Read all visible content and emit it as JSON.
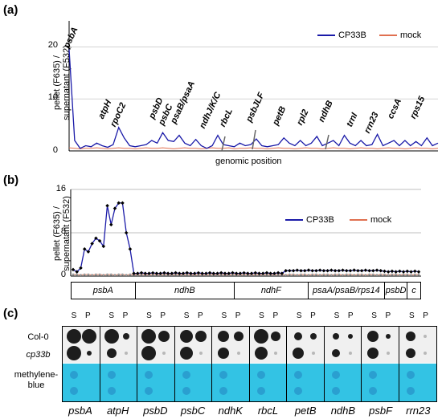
{
  "panel_a": {
    "label": "(a)",
    "ylabel_line1": "pellet (F635) /",
    "ylabel_line2": "supernatant (F532)",
    "yticks": [
      "20",
      "10",
      "0"
    ],
    "xlabel": "genomic position",
    "legend": [
      "CP33B",
      "mock"
    ],
    "genes": [
      "psbA",
      "atpH",
      "rpoC2",
      "psbD",
      "psbC",
      "psaB/psaA",
      "ndhJ/K/C",
      "rbcL",
      "psbJLF",
      "petB",
      "rpl2",
      "ndhB",
      "trnI",
      "rrn23",
      "ccsA",
      "rps15"
    ]
  },
  "panel_b": {
    "label": "(b)",
    "ylabel_line1": "pellet (F635) /",
    "ylabel_line2": "supernatant (F532)",
    "yticks": [
      "16",
      "8",
      "0"
    ],
    "legend": [
      "CP33B",
      "mock"
    ],
    "segments": [
      "psbA",
      "ndhB",
      "ndhF",
      "psaA/psaB/rps14",
      "psbD",
      "c"
    ]
  },
  "panel_c": {
    "label": "(c)",
    "rows": [
      "Col-0",
      "cp33b",
      "methylene-",
      "blue"
    ],
    "s_label": "S",
    "p_label": "P",
    "columns": [
      "psbA",
      "atpH",
      "psbD",
      "psbC",
      "ndhK",
      "rbcL",
      "petB",
      "ndhB",
      "psbF",
      "rrn23"
    ]
  },
  "colors": {
    "cp33b": "#1a1aa8",
    "mock": "#e07050",
    "methylene": "#33c3e4"
  },
  "chart_data": [
    {
      "type": "line",
      "title": "",
      "xlabel": "genomic position",
      "ylabel": "pellet (F635) / supernatant (F532)",
      "ylim": [
        0,
        25
      ],
      "series": [
        {
          "name": "CP33B",
          "values": [
            19.5,
            2,
            0.5,
            1,
            0.8,
            1.5,
            1,
            0.7,
            1.2,
            4.5,
            2.5,
            1,
            0.8,
            1,
            1.2,
            2,
            1.5,
            3.5,
            2,
            1.8,
            3,
            1.5,
            1,
            2.2,
            1,
            0.5,
            1,
            3,
            1.2,
            1,
            0.8,
            1.5,
            1,
            1.2,
            2.3,
            1,
            0.8,
            1,
            1.2,
            2.5,
            1.5,
            1,
            2,
            1,
            1.5,
            2.8,
            1,
            1.5,
            2,
            1,
            3,
            1.5,
            1,
            2,
            1,
            1.2,
            3.2,
            1,
            1.5,
            2,
            1,
            2,
            1,
            1.8,
            1,
            2.5,
            1,
            1.5
          ]
        },
        {
          "name": "mock",
          "values": [
            0.6,
            0.5,
            0.4,
            0.5,
            0.5,
            0.6,
            0.5,
            0.4,
            0.5,
            0.6,
            0.5,
            0.5,
            0.4,
            0.5,
            0.6,
            0.5,
            0.5,
            0.6,
            0.5,
            0.4,
            0.5,
            0.6,
            0.5,
            0.5,
            0.4,
            0.5,
            0.6,
            0.5,
            0.5,
            0.6,
            0.4,
            0.5,
            0.5,
            0.6,
            0.5,
            0.5,
            0.4,
            0.5,
            0.6,
            0.5,
            0.5,
            0.4,
            0.5,
            0.6,
            0.5,
            0.5,
            0.4,
            0.5,
            0.6,
            0.5,
            0.5,
            0.4,
            0.5,
            0.6,
            0.5,
            0.5,
            0.4,
            0.5,
            0.6,
            0.5,
            0.5,
            0.4,
            0.5,
            0.6,
            0.5,
            0.5,
            0.4,
            0.5
          ]
        }
      ]
    },
    {
      "type": "line",
      "title": "",
      "ylabel": "pellet (F635) / supernatant (F532)",
      "ylim": [
        0,
        16
      ],
      "series": [
        {
          "name": "CP33B",
          "values": [
            1.2,
            0.8,
            1.5,
            5,
            4.5,
            6,
            7,
            6.5,
            5.5,
            13,
            9.5,
            12.5,
            13.5,
            13.5,
            8,
            5,
            0.5,
            0.5,
            0.6,
            0.5,
            0.5,
            0.6,
            0.5,
            0.5,
            0.6,
            0.5,
            0.5,
            0.6,
            0.5,
            0.5,
            0.6,
            0.5,
            0.5,
            0.6,
            0.5,
            0.5,
            0.6,
            0.5,
            0.5,
            0.6,
            0.5,
            0.5,
            0.6,
            0.5,
            0.5,
            0.6,
            0.5,
            0.5,
            0.6,
            0.5,
            0.5,
            0.6,
            0.5,
            0.5,
            0.6,
            0.5,
            1,
            1,
            1,
            1.1,
            1,
            1,
            1.1,
            1,
            1,
            1.1,
            1,
            1,
            1.1,
            1,
            1,
            1.1,
            1,
            1,
            1.1,
            1,
            1,
            1.1,
            1,
            1,
            1.1,
            1,
            0.9,
            0.8,
            0.9,
            0.8,
            0.9,
            0.8,
            0.9,
            0.8,
            0.9,
            0.8
          ]
        },
        {
          "name": "mock",
          "values": [
            0.3,
            0.3,
            0.2,
            0.3,
            0.3,
            0.2,
            0.3,
            0.3,
            0.2,
            0.3,
            0.3,
            0.2,
            0.3,
            0.3,
            0.2,
            0.3,
            0.3,
            0.2,
            0.3,
            0.3,
            0.2,
            0.3,
            0.3,
            0.2,
            0.3,
            0.3,
            0.2,
            0.3,
            0.3,
            0.2,
            0.3,
            0.3,
            0.2,
            0.3,
            0.3,
            0.2,
            0.3,
            0.3,
            0.2,
            0.3,
            0.3,
            0.2,
            0.3,
            0.3,
            0.2,
            0.3,
            0.3,
            0.2,
            0.3,
            0.3,
            0.2,
            0.3,
            0.3,
            0.2,
            0.3,
            0.3,
            0.2,
            0.3,
            0.3,
            0.2,
            0.3,
            0.3,
            0.2,
            0.3,
            0.3,
            0.2,
            0.3,
            0.3,
            0.2,
            0.3,
            0.3,
            0.2,
            0.3,
            0.3,
            0.2,
            0.3,
            0.3,
            0.2,
            0.3,
            0.3,
            0.2,
            0.3,
            0.3,
            0.2,
            0.3,
            0.3,
            0.2,
            0.3,
            0.3,
            0.2,
            0.3,
            0.3
          ]
        }
      ]
    }
  ]
}
